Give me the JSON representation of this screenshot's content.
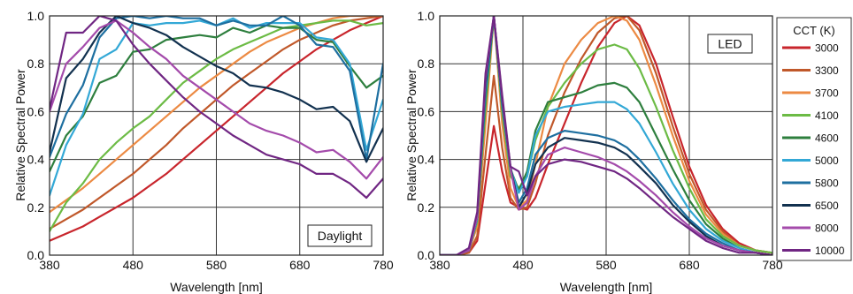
{
  "legend": {
    "title": "CCT (K)",
    "entries": [
      "3000",
      "3300",
      "3700",
      "4100",
      "4600",
      "5000",
      "5800",
      "6500",
      "8000",
      "10000"
    ],
    "colors": [
      "#c8252c",
      "#c0582a",
      "#ec8a43",
      "#6cbb45",
      "#2e7f3e",
      "#33a8d6",
      "#1e6fa0",
      "#12314f",
      "#a44bab",
      "#702683"
    ]
  },
  "chart_data": [
    {
      "type": "line",
      "label": "Daylight",
      "xlabel": "Wavelength [nm]",
      "ylabel": "Relative Spectral Power",
      "xlim": [
        380,
        780
      ],
      "ylim": [
        0,
        1.0
      ],
      "xticks": [
        "380",
        "480",
        "580",
        "680",
        "780"
      ],
      "yticks": [
        "0.0",
        "0.2",
        "0.4",
        "0.6",
        "0.8",
        "1.0"
      ],
      "grid": true,
      "x": [
        380,
        400,
        420,
        440,
        460,
        480,
        500,
        520,
        540,
        560,
        580,
        600,
        620,
        640,
        660,
        680,
        700,
        720,
        740,
        760,
        780
      ],
      "series": [
        {
          "name": "3000",
          "values": [
            0.06,
            0.09,
            0.12,
            0.16,
            0.2,
            0.24,
            0.29,
            0.34,
            0.4,
            0.46,
            0.52,
            0.58,
            0.64,
            0.7,
            0.76,
            0.81,
            0.86,
            0.9,
            0.94,
            0.97,
            1.0
          ]
        },
        {
          "name": "3300",
          "values": [
            0.11,
            0.15,
            0.19,
            0.24,
            0.29,
            0.34,
            0.4,
            0.46,
            0.53,
            0.59,
            0.65,
            0.71,
            0.76,
            0.81,
            0.86,
            0.9,
            0.93,
            0.96,
            0.98,
            0.99,
            1.0
          ]
        },
        {
          "name": "3700",
          "values": [
            0.18,
            0.23,
            0.28,
            0.34,
            0.4,
            0.46,
            0.52,
            0.58,
            0.64,
            0.7,
            0.75,
            0.8,
            0.85,
            0.89,
            0.92,
            0.95,
            0.97,
            0.99,
            1.0,
            1.0,
            1.0
          ]
        },
        {
          "name": "4100",
          "values": [
            0.1,
            0.22,
            0.3,
            0.4,
            0.47,
            0.53,
            0.58,
            0.65,
            0.72,
            0.77,
            0.82,
            0.86,
            0.89,
            0.92,
            0.95,
            0.96,
            0.97,
            0.98,
            0.98,
            0.96,
            0.97
          ]
        },
        {
          "name": "4600",
          "values": [
            0.35,
            0.5,
            0.58,
            0.72,
            0.75,
            0.85,
            0.86,
            0.9,
            0.91,
            0.92,
            0.91,
            0.95,
            0.93,
            0.96,
            0.95,
            0.95,
            0.9,
            0.89,
            0.79,
            0.7,
            0.75
          ]
        },
        {
          "name": "5000",
          "values": [
            0.25,
            0.46,
            0.59,
            0.82,
            0.86,
            0.97,
            0.96,
            0.97,
            0.97,
            0.98,
            0.96,
            0.99,
            0.95,
            0.97,
            0.97,
            0.97,
            0.91,
            0.9,
            0.8,
            0.44,
            0.65
          ]
        },
        {
          "name": "5800",
          "values": [
            0.41,
            0.59,
            0.71,
            0.91,
            0.99,
            1.0,
            0.99,
            1.0,
            0.99,
            0.99,
            0.96,
            0.98,
            0.96,
            0.96,
            1.0,
            0.96,
            0.88,
            0.87,
            0.77,
            0.4,
            0.8
          ]
        },
        {
          "name": "6500",
          "values": [
            0.43,
            0.74,
            0.82,
            0.93,
            1.0,
            0.97,
            0.95,
            0.92,
            0.87,
            0.83,
            0.79,
            0.76,
            0.71,
            0.7,
            0.68,
            0.65,
            0.61,
            0.62,
            0.56,
            0.39,
            0.53
          ]
        },
        {
          "name": "8000",
          "values": [
            0.6,
            0.8,
            0.87,
            0.95,
            0.98,
            0.93,
            0.87,
            0.82,
            0.75,
            0.7,
            0.65,
            0.6,
            0.55,
            0.52,
            0.5,
            0.47,
            0.43,
            0.44,
            0.39,
            0.32,
            0.41
          ]
        },
        {
          "name": "10000",
          "values": [
            0.61,
            0.93,
            0.93,
            1.0,
            0.98,
            0.88,
            0.8,
            0.73,
            0.66,
            0.6,
            0.55,
            0.5,
            0.46,
            0.42,
            0.4,
            0.38,
            0.34,
            0.34,
            0.3,
            0.24,
            0.32
          ]
        }
      ]
    },
    {
      "type": "line",
      "label": "LED",
      "xlabel": "Wavelength [nm]",
      "ylabel": "Relative Spectral Power",
      "xlim": [
        380,
        780
      ],
      "ylim": [
        0,
        1.0
      ],
      "xticks": [
        "380",
        "480",
        "580",
        "680",
        "780"
      ],
      "yticks": [
        "0.0",
        "0.2",
        "0.4",
        "0.6",
        "0.8",
        "1.0"
      ],
      "grid": true,
      "x": [
        380,
        400,
        415,
        425,
        435,
        445,
        455,
        465,
        475,
        485,
        495,
        510,
        530,
        550,
        570,
        590,
        605,
        620,
        640,
        660,
        680,
        700,
        720,
        740,
        760,
        780
      ],
      "series": [
        {
          "name": "3000",
          "values": [
            0.0,
            0.0,
            0.01,
            0.06,
            0.3,
            0.54,
            0.35,
            0.22,
            0.2,
            0.19,
            0.24,
            0.38,
            0.55,
            0.72,
            0.87,
            0.97,
            1.0,
            0.96,
            0.8,
            0.58,
            0.37,
            0.21,
            0.11,
            0.05,
            0.02,
            0.01
          ]
        },
        {
          "name": "3300",
          "values": [
            0.0,
            0.0,
            0.01,
            0.08,
            0.42,
            0.75,
            0.45,
            0.24,
            0.19,
            0.2,
            0.3,
            0.5,
            0.68,
            0.82,
            0.93,
            0.99,
            1.0,
            0.94,
            0.76,
            0.54,
            0.34,
            0.19,
            0.1,
            0.04,
            0.02,
            0.01
          ]
        },
        {
          "name": "3700",
          "values": [
            0.0,
            0.0,
            0.02,
            0.12,
            0.55,
            1.0,
            0.55,
            0.28,
            0.2,
            0.23,
            0.38,
            0.62,
            0.8,
            0.9,
            0.97,
            1.0,
            0.98,
            0.9,
            0.71,
            0.5,
            0.31,
            0.17,
            0.09,
            0.04,
            0.02,
            0.01
          ]
        },
        {
          "name": "4100",
          "values": [
            0.0,
            0.0,
            0.02,
            0.14,
            0.62,
            1.0,
            0.6,
            0.33,
            0.28,
            0.33,
            0.48,
            0.62,
            0.72,
            0.8,
            0.86,
            0.88,
            0.86,
            0.78,
            0.62,
            0.44,
            0.28,
            0.15,
            0.08,
            0.04,
            0.02,
            0.01
          ]
        },
        {
          "name": "4600",
          "values": [
            0.0,
            0.0,
            0.02,
            0.15,
            0.65,
            1.0,
            0.62,
            0.36,
            0.27,
            0.35,
            0.52,
            0.64,
            0.66,
            0.68,
            0.71,
            0.72,
            0.7,
            0.64,
            0.5,
            0.36,
            0.23,
            0.13,
            0.07,
            0.03,
            0.01,
            0.0
          ]
        },
        {
          "name": "5000",
          "values": [
            0.0,
            0.0,
            0.02,
            0.15,
            0.68,
            1.0,
            0.63,
            0.36,
            0.26,
            0.33,
            0.5,
            0.6,
            0.62,
            0.63,
            0.64,
            0.64,
            0.61,
            0.55,
            0.43,
            0.3,
            0.19,
            0.11,
            0.06,
            0.03,
            0.01,
            0.0
          ]
        },
        {
          "name": "5800",
          "values": [
            0.0,
            0.0,
            0.02,
            0.16,
            0.7,
            1.0,
            0.64,
            0.36,
            0.22,
            0.28,
            0.42,
            0.49,
            0.52,
            0.51,
            0.5,
            0.48,
            0.45,
            0.4,
            0.32,
            0.23,
            0.15,
            0.09,
            0.05,
            0.02,
            0.01,
            0.0
          ]
        },
        {
          "name": "6500",
          "values": [
            0.0,
            0.0,
            0.02,
            0.16,
            0.72,
            1.0,
            0.65,
            0.37,
            0.2,
            0.26,
            0.38,
            0.45,
            0.49,
            0.48,
            0.47,
            0.45,
            0.42,
            0.37,
            0.3,
            0.21,
            0.14,
            0.08,
            0.04,
            0.02,
            0.01,
            0.0
          ]
        },
        {
          "name": "8000",
          "values": [
            0.0,
            0.0,
            0.02,
            0.16,
            0.74,
            1.0,
            0.66,
            0.36,
            0.19,
            0.22,
            0.33,
            0.42,
            0.45,
            0.43,
            0.41,
            0.38,
            0.35,
            0.31,
            0.25,
            0.18,
            0.12,
            0.07,
            0.04,
            0.02,
            0.01,
            0.0
          ]
        },
        {
          "name": "10000",
          "values": [
            0.0,
            0.0,
            0.03,
            0.18,
            0.76,
            1.0,
            0.67,
            0.37,
            0.35,
            0.25,
            0.33,
            0.38,
            0.4,
            0.39,
            0.37,
            0.35,
            0.32,
            0.28,
            0.22,
            0.16,
            0.11,
            0.06,
            0.03,
            0.01,
            0.01,
            0.0
          ]
        }
      ]
    }
  ]
}
